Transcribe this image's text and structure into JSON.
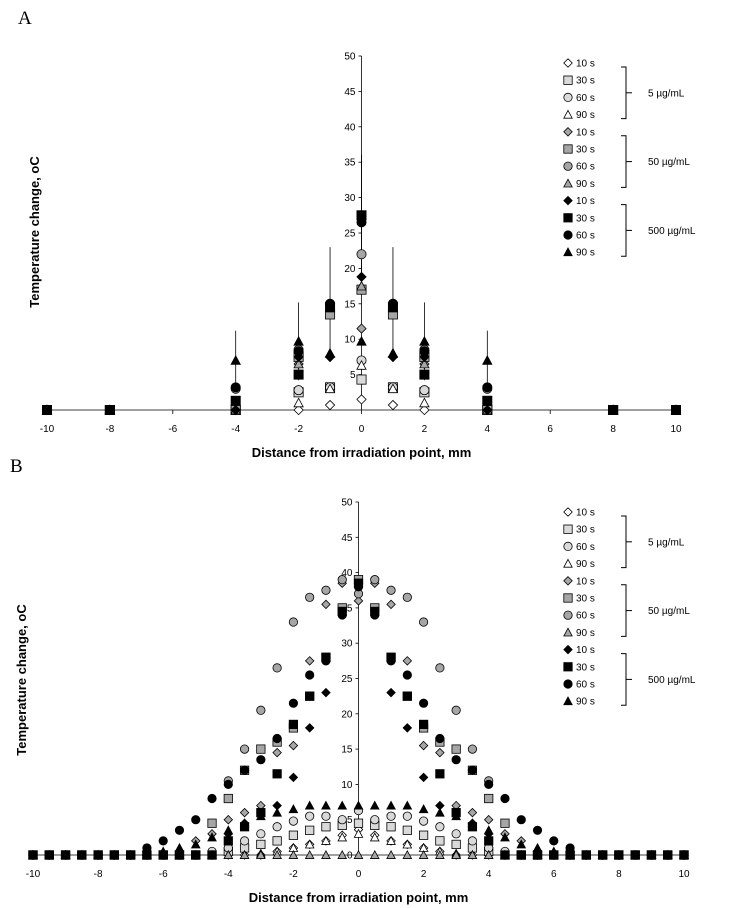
{
  "panels": [
    {
      "letter": "A",
      "xlabel": "Distance from irradiation point, mm",
      "ylabel": "Temperature change, oC",
      "legend": {
        "entries": [
          "10 s",
          "30 s",
          "60 s",
          "90 s",
          "10 s",
          "30 s",
          "60 s",
          "90 s",
          "10 s",
          "30 s",
          "60 s",
          "90 s"
        ],
        "groups": [
          "5 µg/mL",
          "50 µg/mL",
          "500 µg/mL"
        ]
      }
    },
    {
      "letter": "B",
      "xlabel": "Distance from irradiation point, mm",
      "ylabel": "Temperature change, oC",
      "legend": {
        "entries": [
          "10 s",
          "30 s",
          "60 s",
          "90 s",
          "10 s",
          "30 s",
          "60 s",
          "90 s",
          "10 s",
          "30 s",
          "60 s",
          "90 s"
        ],
        "groups": [
          "5 µg/mL",
          "50 µg/mL",
          "500 µg/mL"
        ]
      }
    }
  ],
  "chart_data": [
    {
      "type": "scatter",
      "title": "",
      "xlabel": "Distance from irradiation point, mm",
      "ylabel": "Temperature change, oC",
      "xlim": [
        -10,
        10
      ],
      "ylim": [
        0,
        50
      ],
      "xticks": [
        -10,
        -8,
        -6,
        -4,
        -2,
        0,
        2,
        4,
        6,
        8,
        10
      ],
      "yticks": [
        5,
        10,
        15,
        20,
        25,
        30,
        35,
        40,
        45,
        50
      ],
      "grid": false,
      "legend_position": "top-right",
      "x": [
        -10,
        -8,
        -4,
        -2,
        -1,
        0,
        1,
        2,
        4,
        8,
        10
      ],
      "series": [
        {
          "name": "10 s",
          "group": "5 µg/mL",
          "shape": "diamond",
          "fill": "#ffffff",
          "values": [
            0,
            0,
            0,
            0,
            0.7,
            1.5,
            0.7,
            0,
            0,
            0,
            0
          ],
          "err": [
            0,
            0,
            0,
            0,
            0,
            0,
            0,
            0,
            0,
            0,
            0
          ]
        },
        {
          "name": "30 s",
          "group": "5 µg/mL",
          "shape": "square",
          "fill": "#d9d9d9",
          "values": [
            0,
            0,
            0,
            2.5,
            3.2,
            4.3,
            3.2,
            2.5,
            0,
            0,
            0
          ],
          "err": [
            0,
            0,
            0,
            0,
            0,
            0,
            0,
            0,
            0,
            0,
            0
          ]
        },
        {
          "name": "60 s",
          "group": "5 µg/mL",
          "shape": "circle",
          "fill": "#d9d9d9",
          "values": [
            0,
            0,
            0,
            2.8,
            3.2,
            7.0,
            3.2,
            2.8,
            0,
            0,
            0
          ],
          "err": [
            0,
            0,
            0,
            0,
            0,
            0,
            0,
            0,
            0,
            0,
            0
          ]
        },
        {
          "name": "90 s",
          "group": "5 µg/mL",
          "shape": "triangle",
          "fill": "#ffffff",
          "values": [
            0,
            0,
            0,
            1.0,
            3.0,
            6.3,
            3.0,
            1.0,
            0,
            0,
            0
          ],
          "err": [
            0,
            0,
            0,
            0,
            0,
            0,
            0,
            0,
            0,
            0,
            0
          ]
        },
        {
          "name": "10 s",
          "group": "50 µg/mL",
          "shape": "diamond",
          "fill": "#a6a6a6",
          "values": [
            0,
            0,
            0,
            6.5,
            7.5,
            11.5,
            7.5,
            6.5,
            0,
            0,
            0
          ],
          "err": [
            0,
            0,
            0,
            0,
            0,
            0,
            0,
            0,
            0,
            0,
            0
          ]
        },
        {
          "name": "30 s",
          "group": "50 µg/mL",
          "shape": "square",
          "fill": "#a6a6a6",
          "values": [
            0,
            0,
            0,
            7.5,
            13.5,
            17.0,
            13.5,
            7.5,
            0,
            0,
            0
          ],
          "err": [
            0,
            0,
            0,
            0,
            0,
            0,
            0,
            0,
            0,
            0,
            0
          ]
        },
        {
          "name": "60 s",
          "group": "50 µg/mL",
          "shape": "circle",
          "fill": "#a6a6a6",
          "values": [
            0,
            0,
            3.0,
            8.5,
            15.0,
            22.0,
            15.0,
            8.5,
            3.0,
            0,
            0
          ],
          "err": [
            0,
            0,
            0,
            0,
            0,
            0,
            0,
            0,
            0,
            0,
            0
          ]
        },
        {
          "name": "90 s",
          "group": "50 µg/mL",
          "shape": "triangle",
          "fill": "#a6a6a6",
          "values": [
            0,
            0,
            0,
            6.5,
            8.0,
            17.5,
            8.0,
            6.5,
            0,
            0,
            0
          ],
          "err": [
            0,
            0,
            0,
            0,
            0,
            0,
            0,
            0,
            0,
            0,
            0
          ]
        },
        {
          "name": "10 s",
          "group": "500 µg/mL",
          "shape": "diamond",
          "fill": "#000000",
          "values": [
            0,
            0,
            0,
            7.5,
            7.5,
            18.8,
            7.5,
            7.5,
            0,
            0,
            0
          ],
          "err": [
            0,
            0,
            0,
            0,
            0,
            0,
            0,
            0,
            0,
            0,
            0
          ]
        },
        {
          "name": "30 s",
          "group": "500 µg/mL",
          "shape": "square",
          "fill": "#000000",
          "values": [
            0,
            0,
            1.3,
            5.0,
            14.5,
            27.5,
            14.5,
            5.0,
            1.3,
            0,
            0
          ],
          "err": [
            0,
            0,
            0,
            0,
            0,
            8.5,
            0,
            0,
            0,
            0,
            0
          ]
        },
        {
          "name": "60 s",
          "group": "500 µg/mL",
          "shape": "circle",
          "fill": "#000000",
          "values": [
            0,
            0,
            3.2,
            8.3,
            15.0,
            26.5,
            15.0,
            8.3,
            3.2,
            0,
            0
          ],
          "err": [
            0,
            0,
            0,
            0,
            8.0,
            0,
            8.0,
            0,
            0,
            0,
            0
          ]
        },
        {
          "name": "90 s",
          "group": "500 µg/mL",
          "shape": "triangle",
          "fill": "#000000",
          "values": [
            0,
            0,
            7.0,
            9.7,
            8.0,
            9.7,
            8.0,
            9.7,
            7.0,
            0,
            0
          ],
          "err": [
            0,
            0,
            4.2,
            5.5,
            0,
            0,
            0,
            5.5,
            4.2,
            0,
            0
          ]
        }
      ]
    },
    {
      "type": "scatter",
      "title": "",
      "xlabel": "Distance from irradiation point, mm",
      "ylabel": "Temperature change, oC",
      "xlim": [
        -10,
        10
      ],
      "ylim": [
        0,
        50
      ],
      "xticks": [
        -10,
        -8,
        -6,
        -4,
        -2,
        0,
        2,
        4,
        6,
        8,
        10
      ],
      "yticks": [
        0,
        5,
        10,
        15,
        20,
        25,
        30,
        35,
        40,
        45,
        50
      ],
      "grid": false,
      "legend_position": "top-right",
      "x": [
        -10,
        -9.5,
        -9,
        -8.5,
        -8,
        -7.5,
        -7,
        -6.5,
        -6,
        -5.5,
        -5,
        -4.5,
        -4,
        -3.5,
        -3,
        -2.5,
        -2,
        -1.5,
        -1,
        -0.5,
        0,
        0.5,
        1,
        1.5,
        2,
        2.5,
        3,
        3.5,
        4,
        4.5,
        5,
        5.5,
        6,
        6.5,
        7,
        7.5,
        8,
        8.5,
        9,
        9.5,
        10
      ],
      "series": [
        {
          "name": "10 s",
          "group": "5 µg/mL",
          "shape": "diamond",
          "fill": "#ffffff",
          "values": [
            0,
            0,
            0,
            0,
            0,
            0,
            0,
            0,
            0,
            0,
            0,
            0,
            0,
            0,
            0,
            0.5,
            1.0,
            1.5,
            2.0,
            2.8,
            3.6,
            2.8,
            2.0,
            1.5,
            1.0,
            0.5,
            0,
            0,
            0,
            0,
            0,
            0,
            0,
            0,
            0,
            0,
            0,
            0,
            0,
            0,
            0
          ],
          "err": []
        },
        {
          "name": "30 s",
          "group": "5 µg/mL",
          "shape": "square",
          "fill": "#d9d9d9",
          "values": [
            0,
            0,
            0,
            0,
            0,
            0,
            0,
            0,
            0,
            0,
            0,
            0,
            0.5,
            1.0,
            1.5,
            2.0,
            2.8,
            3.5,
            4.0,
            4.2,
            4.5,
            4.2,
            4.0,
            3.5,
            2.8,
            2.0,
            1.5,
            1.0,
            0.5,
            0,
            0,
            0,
            0,
            0,
            0,
            0,
            0,
            0,
            0,
            0,
            0
          ],
          "err": []
        },
        {
          "name": "60 s",
          "group": "5 µg/mL",
          "shape": "circle",
          "fill": "#d9d9d9",
          "values": [
            0,
            0,
            0,
            0,
            0,
            0,
            0,
            0,
            0,
            0,
            0,
            0.5,
            1.0,
            2.0,
            3.0,
            4.0,
            4.8,
            5.5,
            5.5,
            5.0,
            6.3,
            5.0,
            5.5,
            5.5,
            4.8,
            4.0,
            3.0,
            2.0,
            1.0,
            0.5,
            0,
            0,
            0,
            0,
            0,
            0,
            0,
            0,
            0,
            0,
            0
          ],
          "err": []
        },
        {
          "name": "90 s",
          "group": "5 µg/mL",
          "shape": "triangle",
          "fill": "#ffffff",
          "values": [
            0,
            0,
            0,
            0,
            0,
            0,
            0,
            0,
            0,
            0,
            0,
            0,
            0,
            0,
            0.2,
            0.5,
            1.0,
            1.5,
            2.0,
            2.5,
            3.0,
            2.5,
            2.0,
            1.5,
            1.0,
            0.5,
            0.2,
            0,
            0,
            0,
            0,
            0,
            0,
            0,
            0,
            0,
            0,
            0,
            0,
            0,
            0
          ],
          "err": []
        },
        {
          "name": "10 s",
          "group": "50 µg/mL",
          "shape": "diamond",
          "fill": "#a6a6a6",
          "values": [
            0,
            0,
            0,
            0,
            0,
            0,
            0,
            0,
            0,
            0,
            2.0,
            3.0,
            5.0,
            6.0,
            7.0,
            14.5,
            15.5,
            27.5,
            35.5,
            38.5,
            36.0,
            38.5,
            35.5,
            27.5,
            15.5,
            14.5,
            7.0,
            6.0,
            5.0,
            3.0,
            2.0,
            0,
            0,
            0,
            0,
            0,
            0,
            0,
            0,
            0,
            0
          ],
          "err": []
        },
        {
          "name": "30 s",
          "group": "50 µg/mL",
          "shape": "square",
          "fill": "#a6a6a6",
          "values": [
            0,
            0,
            0,
            0,
            0,
            0,
            0,
            0,
            0,
            0,
            0,
            4.5,
            8.0,
            12.0,
            15.0,
            16.0,
            18.0,
            22.5,
            28.0,
            35.0,
            39.0,
            35.0,
            28.0,
            22.5,
            18.0,
            16.0,
            15.0,
            12.0,
            8.0,
            4.5,
            0,
            0,
            0,
            0,
            0,
            0,
            0,
            0,
            0,
            0,
            0
          ],
          "err": []
        },
        {
          "name": "60 s",
          "group": "50 µg/mL",
          "shape": "circle",
          "fill": "#a6a6a6",
          "values": [
            0,
            0,
            0,
            0,
            0,
            0,
            0,
            0,
            0,
            0,
            0,
            0,
            10.5,
            15.0,
            20.5,
            26.5,
            33.0,
            36.5,
            37.5,
            39.0,
            37.0,
            39.0,
            37.5,
            36.5,
            33.0,
            26.5,
            20.5,
            15.0,
            10.5,
            0,
            0,
            0,
            0,
            0,
            0,
            0,
            0,
            0,
            0,
            0,
            0
          ],
          "err": []
        },
        {
          "name": "90 s",
          "group": "50 µg/mL",
          "shape": "triangle",
          "fill": "#a6a6a6",
          "values": [
            0,
            0,
            0,
            0,
            0,
            0,
            0,
            0,
            0,
            0,
            0,
            0,
            0,
            0,
            0,
            0,
            0,
            0,
            0,
            0,
            0,
            0,
            0,
            0,
            0,
            0,
            0,
            0,
            0,
            0,
            0,
            0,
            0,
            0,
            0,
            0,
            0,
            0,
            0,
            0,
            0
          ],
          "err": []
        },
        {
          "name": "10 s",
          "group": "500 µg/mL",
          "shape": "diamond",
          "fill": "#000000",
          "values": [
            0,
            0,
            0,
            0,
            0,
            0,
            0,
            0,
            0,
            0,
            0,
            0,
            3.0,
            4.5,
            6.0,
            7.0,
            11.0,
            18.0,
            23.0,
            34.0,
            38.5,
            34.0,
            23.0,
            18.0,
            11.0,
            7.0,
            6.0,
            4.5,
            3.0,
            0,
            0,
            0,
            0,
            0,
            0,
            0,
            0,
            0,
            0,
            0,
            0
          ],
          "err": []
        },
        {
          "name": "30 s",
          "group": "500 µg/mL",
          "shape": "square",
          "fill": "#000000",
          "values": [
            0,
            0,
            0,
            0,
            0,
            0,
            0,
            0,
            0,
            0,
            0,
            0,
            2.0,
            4.0,
            6.0,
            11.5,
            18.5,
            22.5,
            28.0,
            34.5,
            38.5,
            34.5,
            28.0,
            22.5,
            18.5,
            11.5,
            6.0,
            4.0,
            2.0,
            0,
            0,
            0,
            0,
            0,
            0,
            0,
            0,
            0,
            0,
            0,
            0
          ],
          "err": []
        },
        {
          "name": "60 s",
          "group": "500 µg/mL",
          "shape": "circle",
          "fill": "#000000",
          "values": [
            0,
            0,
            0,
            0,
            0,
            0,
            0,
            1.0,
            2.0,
            3.5,
            5.0,
            8.0,
            10.0,
            12.0,
            13.5,
            16.5,
            21.5,
            25.5,
            27.5,
            34.0,
            38.0,
            34.0,
            27.5,
            25.5,
            21.5,
            16.5,
            13.5,
            12.0,
            10.0,
            8.0,
            5.0,
            3.5,
            2.0,
            1.0,
            0,
            0,
            0,
            0,
            0,
            0,
            0
          ],
          "err": []
        },
        {
          "name": "90 s",
          "group": "500 µg/mL",
          "shape": "triangle",
          "fill": "#000000",
          "values": [
            0,
            0,
            0,
            0,
            0,
            0,
            0,
            0,
            0.5,
            1.0,
            1.5,
            2.5,
            3.5,
            4.5,
            5.5,
            6.0,
            6.5,
            7.0,
            7.0,
            7.0,
            7.0,
            7.0,
            7.0,
            7.0,
            6.5,
            6.0,
            5.5,
            4.5,
            3.5,
            2.5,
            1.5,
            1.0,
            0.5,
            0,
            0,
            0,
            0,
            0,
            0,
            0,
            0
          ],
          "err": []
        }
      ]
    }
  ]
}
